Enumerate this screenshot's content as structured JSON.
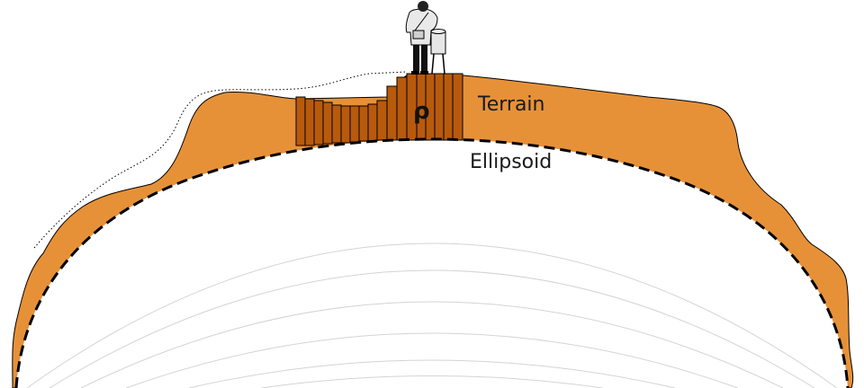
{
  "labels": {
    "terrain": "Terrain",
    "ellipsoid": "Ellipsoid",
    "density_symbol": "ρ"
  },
  "colors": {
    "terrain_fill": "#E69138",
    "prism_fill": "#B85A0C",
    "outline": "#000000",
    "ellipsoid_line": "#000000",
    "guide_lines": "#cccccc",
    "background": "#ffffff"
  },
  "icons": {
    "surveyor": "person-with-instrument-icon"
  }
}
